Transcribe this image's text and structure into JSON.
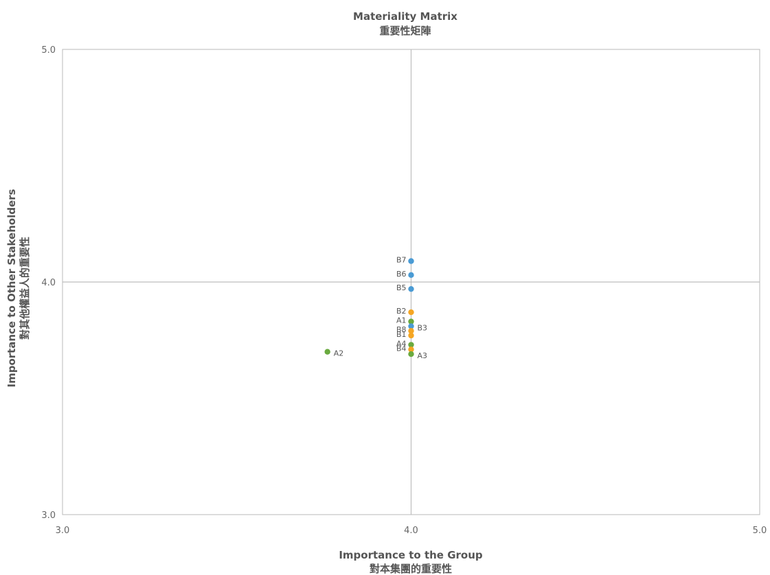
{
  "chart_data": {
    "type": "scatter",
    "title": "Materiality Matrix",
    "subtitle": "重要性矩陣",
    "xlabel": "Importance to the Group",
    "xlabel_cn": "對本集團的重要性",
    "ylabel": "Importance to Other Stakeholders",
    "ylabel_cn": "對其他權益人的重要性",
    "xlim": [
      3.0,
      5.0
    ],
    "ylim": [
      3.0,
      5.0
    ],
    "x_ticks": [
      "3.0",
      "4.0",
      "5.0"
    ],
    "y_ticks": [
      "3.0",
      "4.0",
      "5.0"
    ],
    "crosshair": {
      "x": 4.0,
      "y": 4.0
    },
    "grid": false,
    "legend": "none",
    "colors": {
      "blue": "#4A9BD4",
      "orange": "#F5A623",
      "green": "#6AAA3F"
    },
    "points": [
      {
        "label": "B7",
        "x": 4.0,
        "y": 4.09,
        "color": "#4A9BD4",
        "label_side": "left"
      },
      {
        "label": "B6",
        "x": 4.0,
        "y": 4.03,
        "color": "#4A9BD4",
        "label_side": "left"
      },
      {
        "label": "B5",
        "x": 4.0,
        "y": 3.97,
        "color": "#4A9BD4",
        "label_side": "left"
      },
      {
        "label": "B2",
        "x": 4.0,
        "y": 3.87,
        "color": "#F5A623",
        "label_side": "left"
      },
      {
        "label": "A1",
        "x": 4.0,
        "y": 3.83,
        "color": "#6AAA3F",
        "label_side": "left"
      },
      {
        "label": "B3",
        "x": 4.0,
        "y": 3.81,
        "color": "#4A9BD4",
        "label_side": "right"
      },
      {
        "label": "B8",
        "x": 4.0,
        "y": 3.79,
        "color": "#F5A623",
        "label_side": "left"
      },
      {
        "label": "B1",
        "x": 4.0,
        "y": 3.77,
        "color": "#F5A623",
        "label_side": "left"
      },
      {
        "label": "A4",
        "x": 4.0,
        "y": 3.73,
        "color": "#6AAA3F",
        "label_side": "left"
      },
      {
        "label": "B4",
        "x": 4.0,
        "y": 3.71,
        "color": "#F5A623",
        "label_side": "left"
      },
      {
        "label": "A3",
        "x": 4.0,
        "y": 3.69,
        "color": "#6AAA3F",
        "label_side": "right"
      },
      {
        "label": "A2",
        "x": 3.76,
        "y": 3.7,
        "color": "#6AAA3F",
        "label_side": "right"
      }
    ]
  }
}
